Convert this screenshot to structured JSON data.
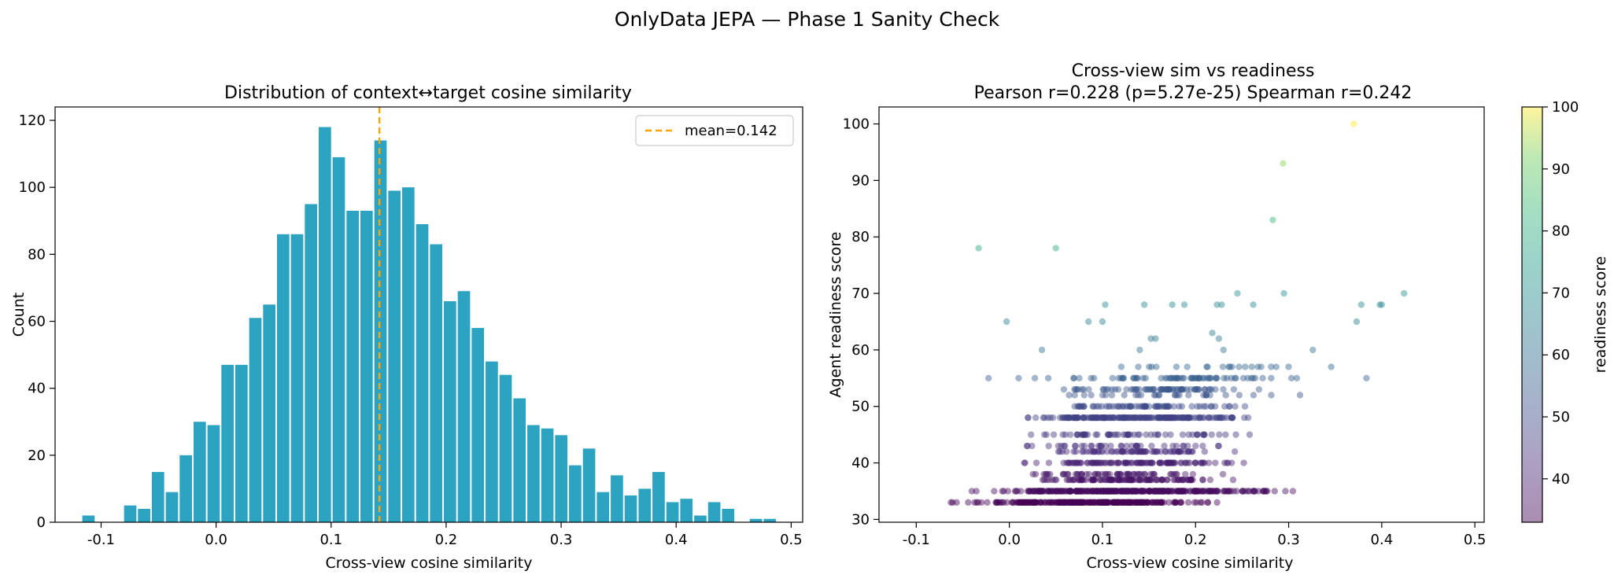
{
  "suptitle": "OnlyData JEPA — Phase 1 Sanity Check",
  "chart_data": [
    {
      "type": "bar",
      "title": "Distribution of context↔target cosine similarity",
      "xlabel": "Cross-view cosine similarity",
      "ylabel": "Count",
      "xlim": [
        -0.14,
        0.51
      ],
      "ylim": [
        0,
        124
      ],
      "xticks": [
        "-0.1",
        "0.0",
        "0.1",
        "0.2",
        "0.3",
        "0.4",
        "0.5"
      ],
      "yticks": [
        "0",
        "20",
        "40",
        "60",
        "80",
        "100",
        "120"
      ],
      "bin_start": -0.117,
      "bin_width": 0.01209,
      "values": [
        2,
        0,
        0,
        5,
        4,
        15,
        9,
        20,
        30,
        29,
        47,
        47,
        61,
        65,
        86,
        86,
        95,
        118,
        109,
        93,
        93,
        114,
        99,
        100,
        89,
        83,
        66,
        69,
        58,
        48,
        44,
        37,
        29,
        28,
        26,
        17,
        22,
        9,
        14,
        8,
        10,
        15,
        6,
        7,
        2,
        6,
        4,
        0,
        1,
        1
      ],
      "bar_color": "#2ca3c1",
      "mean_line": {
        "value": 0.142,
        "color": "#ffa500",
        "label": "mean=0.142"
      },
      "legend": "top-right",
      "grid": false
    },
    {
      "type": "scatter",
      "title": "Cross-view sim vs readiness",
      "subtitle": "Pearson r=0.228 (p=5.27e-25)  Spearman r=0.242",
      "xlabel": "Cross-view cosine similarity",
      "ylabel": "Agent readiness score",
      "xlim": [
        -0.14,
        0.51
      ],
      "ylim": [
        29.5,
        103
      ],
      "xticks": [
        "-0.1",
        "0.0",
        "0.1",
        "0.2",
        "0.3",
        "0.4",
        "0.5"
      ],
      "yticks": [
        "30",
        "40",
        "50",
        "60",
        "70",
        "80",
        "90",
        "100"
      ],
      "colormap": "viridis",
      "colorbar": {
        "label": "readiness score",
        "range": [
          33,
          100
        ],
        "ticks": [
          "40",
          "50",
          "60",
          "70",
          "80",
          "90",
          "100"
        ]
      },
      "bands": [
        {
          "y": 33,
          "xmin": -0.09,
          "xmax": 0.34,
          "n": 280
        },
        {
          "y": 35,
          "xmin": -0.09,
          "xmax": 0.43,
          "n": 320
        },
        {
          "y": 37,
          "xmin": -0.04,
          "xmax": 0.35,
          "n": 110
        },
        {
          "y": 38,
          "xmin": -0.02,
          "xmax": 0.33,
          "n": 60
        },
        {
          "y": 40,
          "xmin": -0.02,
          "xmax": 0.37,
          "n": 110
        },
        {
          "y": 42,
          "xmin": -0.01,
          "xmax": 0.36,
          "n": 70
        },
        {
          "y": 43,
          "xmin": 0.0,
          "xmax": 0.34,
          "n": 40
        },
        {
          "y": 45,
          "xmin": -0.05,
          "xmax": 0.39,
          "n": 60
        },
        {
          "y": 48,
          "xmin": -0.05,
          "xmax": 0.41,
          "n": 190
        },
        {
          "y": 50,
          "xmin": -0.02,
          "xmax": 0.4,
          "n": 70
        },
        {
          "y": 52,
          "xmin": 0.0,
          "xmax": 0.42,
          "n": 30
        },
        {
          "y": 53,
          "xmin": 0.0,
          "xmax": 0.41,
          "n": 70
        },
        {
          "y": 55,
          "xmin": -0.07,
          "xmax": 0.49,
          "n": 70
        },
        {
          "y": 57,
          "xmin": 0.1,
          "xmax": 0.46,
          "n": 22
        }
      ],
      "points": [
        {
          "x": 0.37,
          "y": 100
        },
        {
          "x": 0.294,
          "y": 93
        },
        {
          "x": 0.283,
          "y": 83
        },
        {
          "x": -0.033,
          "y": 78
        },
        {
          "x": 0.05,
          "y": 78
        },
        {
          "x": 0.245,
          "y": 70
        },
        {
          "x": 0.295,
          "y": 70
        },
        {
          "x": 0.424,
          "y": 70
        },
        {
          "x": 0.103,
          "y": 68
        },
        {
          "x": 0.145,
          "y": 68
        },
        {
          "x": 0.175,
          "y": 68
        },
        {
          "x": 0.188,
          "y": 68
        },
        {
          "x": 0.223,
          "y": 68
        },
        {
          "x": 0.228,
          "y": 68
        },
        {
          "x": 0.262,
          "y": 68
        },
        {
          "x": 0.378,
          "y": 68
        },
        {
          "x": 0.398,
          "y": 68
        },
        {
          "x": 0.4,
          "y": 68
        },
        {
          "x": -0.003,
          "y": 65
        },
        {
          "x": 0.085,
          "y": 65
        },
        {
          "x": 0.1,
          "y": 65
        },
        {
          "x": 0.373,
          "y": 65
        },
        {
          "x": 0.218,
          "y": 63
        },
        {
          "x": 0.225,
          "y": 62
        },
        {
          "x": 0.152,
          "y": 62
        },
        {
          "x": 0.157,
          "y": 62
        },
        {
          "x": 0.035,
          "y": 60
        },
        {
          "x": 0.14,
          "y": 60
        },
        {
          "x": 0.23,
          "y": 60
        },
        {
          "x": 0.326,
          "y": 60
        }
      ]
    }
  ]
}
